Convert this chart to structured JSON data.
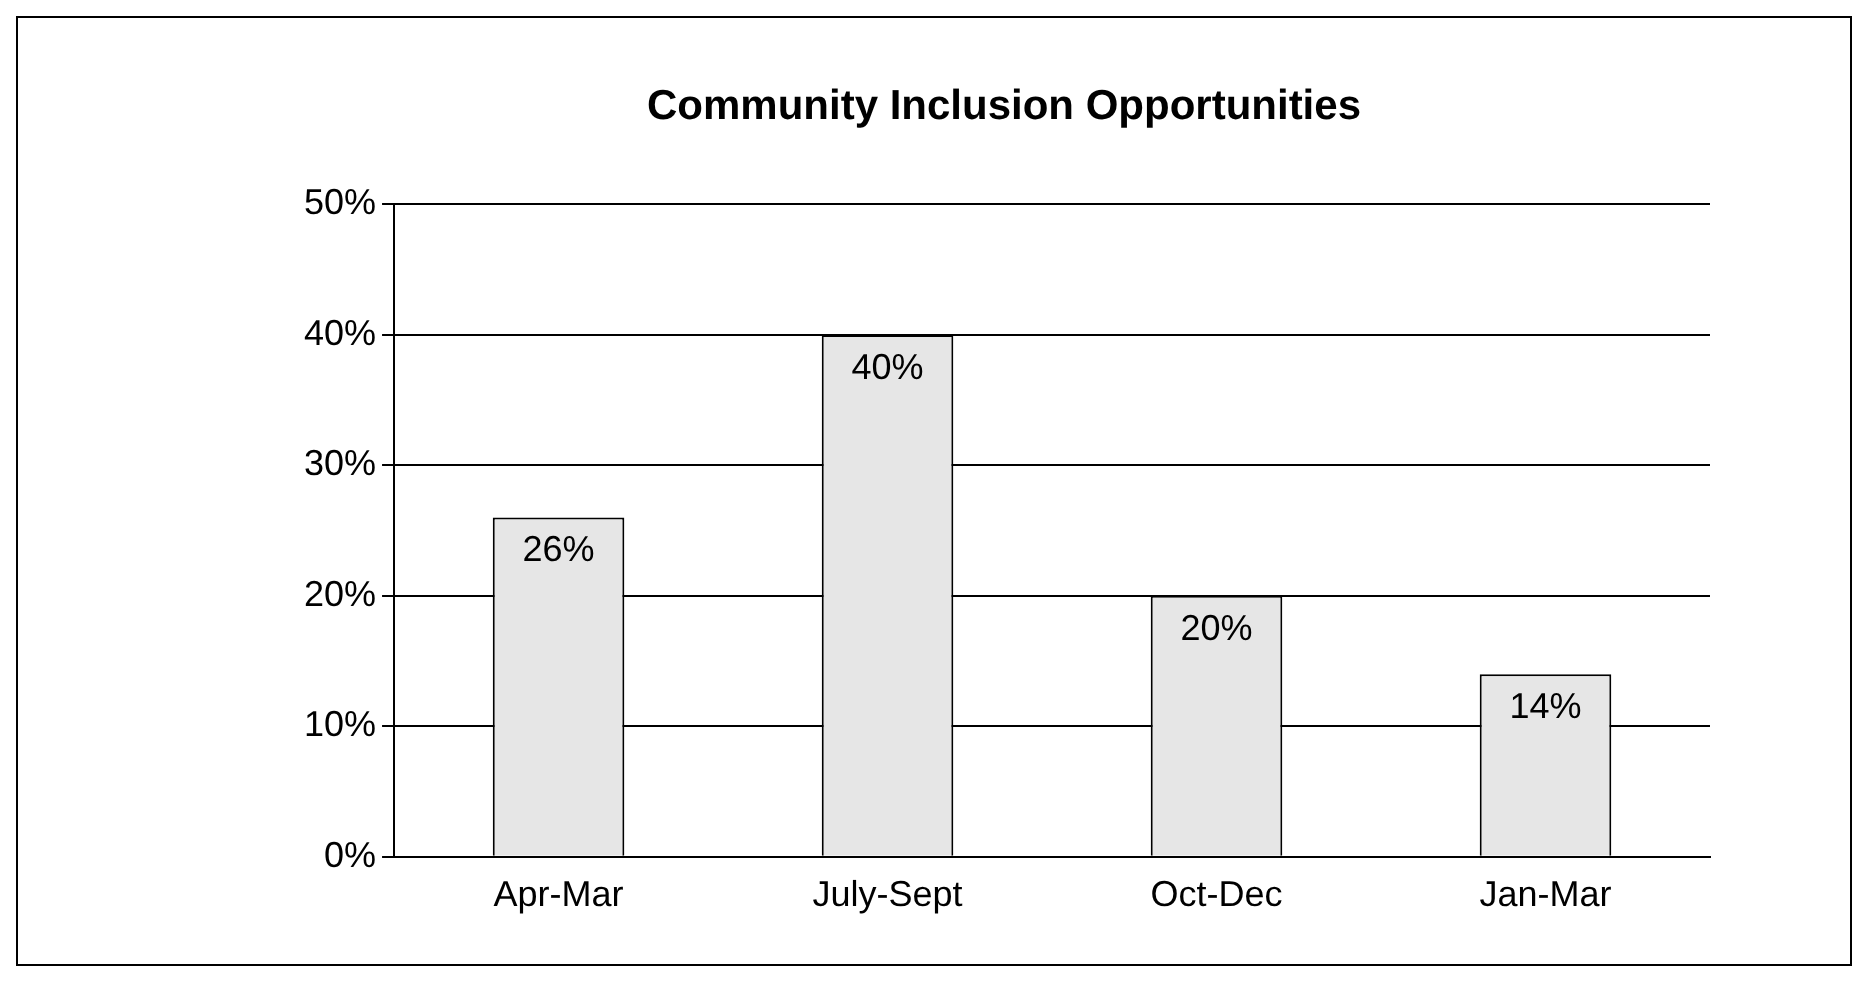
{
  "chart_data": {
    "type": "bar",
    "title": "Community Inclusion Opportunities",
    "categories": [
      "Apr-Mar",
      "July-Sept",
      "Oct-Dec",
      "Jan-Mar"
    ],
    "values": [
      26,
      40,
      20,
      14
    ],
    "color": "#e6e6e6",
    "ylim": [
      0,
      50
    ],
    "yticks": [
      {
        "value": 0,
        "label": "0%"
      },
      {
        "value": 10,
        "label": "10%"
      },
      {
        "value": 20,
        "label": "20%"
      },
      {
        "value": 30,
        "label": "30%"
      },
      {
        "value": 40,
        "label": "40%"
      },
      {
        "value": 50,
        "label": "50%"
      }
    ],
    "value_labels": [
      "26%",
      "40%",
      "20%",
      "14%"
    ],
    "grid": "y"
  }
}
